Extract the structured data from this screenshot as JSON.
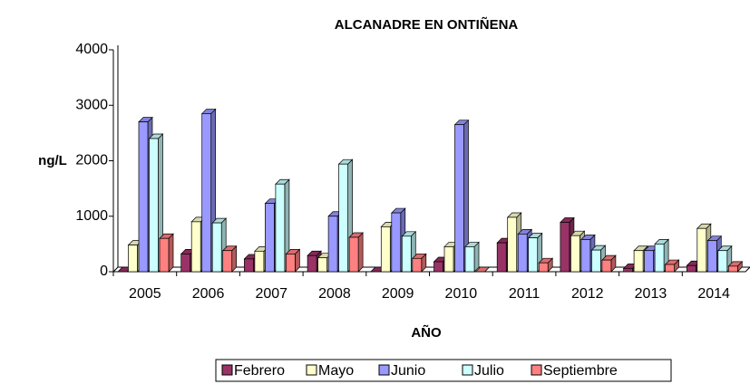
{
  "chart_data": {
    "type": "bar",
    "title": "ALCANADRE EN ONTIÑENA",
    "x_label": "AÑO",
    "y_label": "ng/L",
    "categories": [
      "2005",
      "2006",
      "2007",
      "2008",
      "2009",
      "2010",
      "2011",
      "2012",
      "2013",
      "2014"
    ],
    "series": [
      {
        "name": "Febrero",
        "color": "#993366",
        "values": [
          0,
          320,
          230,
          290,
          0,
          180,
          520,
          890,
          60,
          110
        ]
      },
      {
        "name": "Mayo",
        "color": "#ffffcc",
        "values": [
          480,
          900,
          370,
          250,
          810,
          450,
          980,
          650,
          380,
          780
        ]
      },
      {
        "name": "Junio",
        "color": "#9999ff",
        "values": [
          2700,
          2850,
          1230,
          1000,
          1060,
          2650,
          680,
          580,
          380,
          560
        ]
      },
      {
        "name": "Julio",
        "color": "#ccffff",
        "values": [
          2400,
          880,
          1580,
          1940,
          640,
          450,
          610,
          390,
          500,
          380
        ]
      },
      {
        "name": "Septiembre",
        "color": "#ff8080",
        "values": [
          600,
          380,
          320,
          620,
          240,
          0,
          160,
          210,
          130,
          100
        ]
      }
    ],
    "ylim": [
      0,
      4000
    ],
    "yticks": [
      0,
      1000,
      2000,
      3000,
      4000
    ],
    "legend": "bottom"
  }
}
